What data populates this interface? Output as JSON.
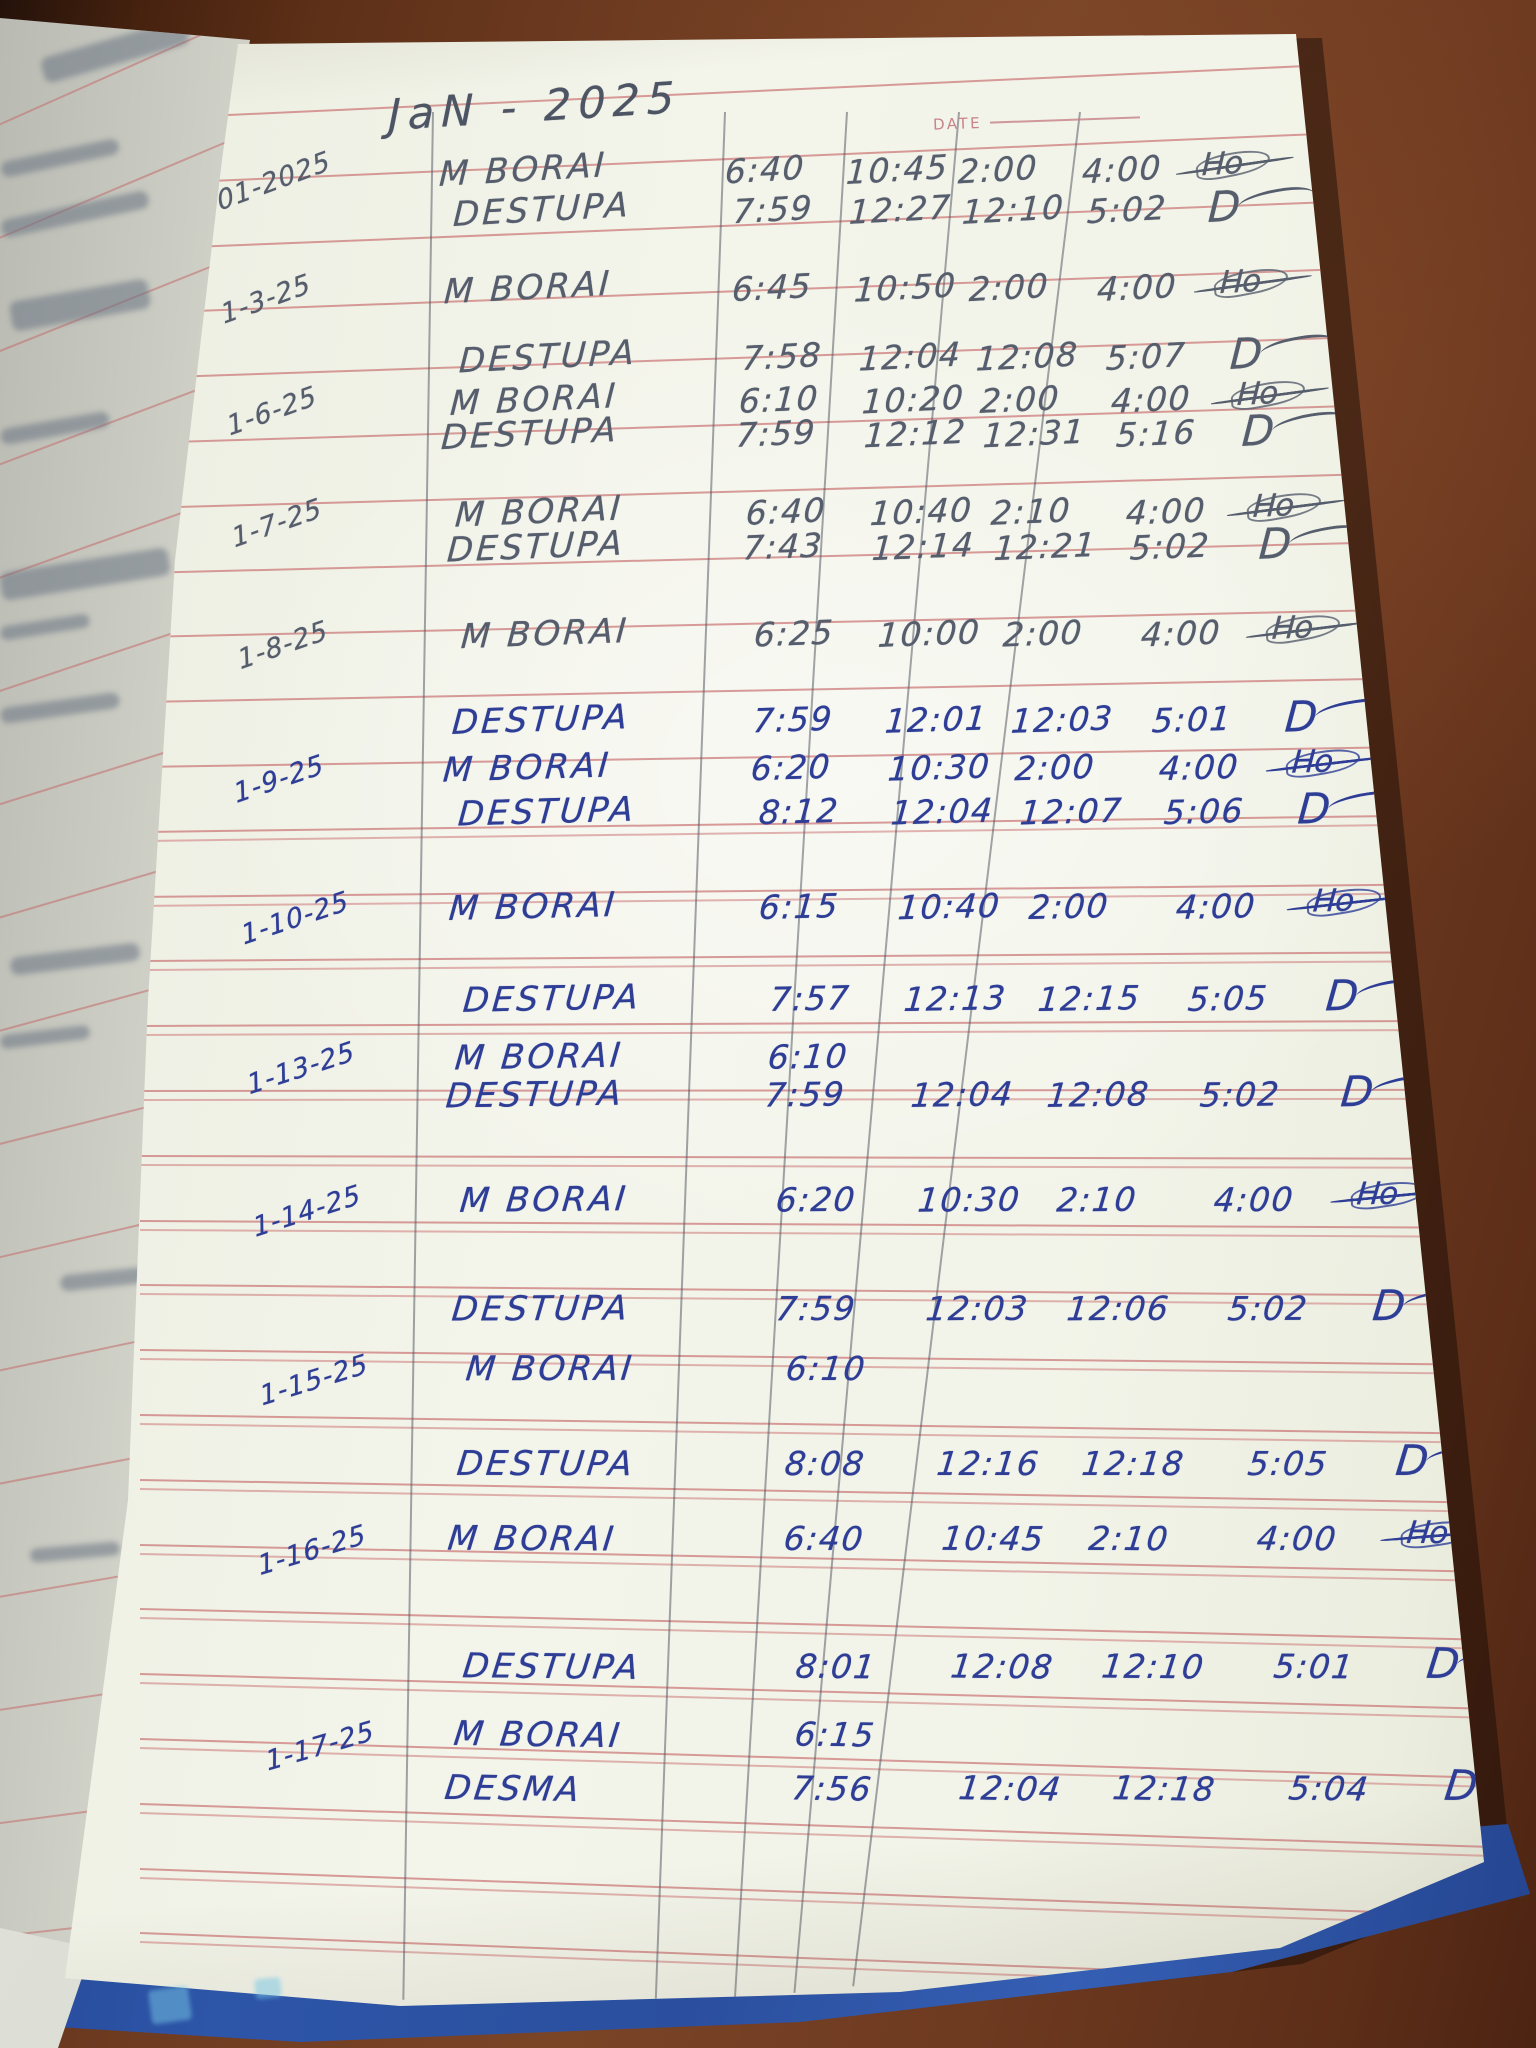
{
  "photo": {
    "title_handwritten": "JaN - 2025",
    "printed_date_label": "DATE",
    "marks": {
      "crossed_scribble": "Ho",
      "signature": "D"
    },
    "ink_colors": {
      "pencil": "#565e6d",
      "pen": "#2e3e96",
      "ruled_line_red": "#cb7676",
      "column_line_gray": "#4e5460",
      "cover_blue": "#2d55a8",
      "table_wood_brown": "#6f3c21"
    },
    "log_rows": [
      {
        "date": "01-2025",
        "name": "M BORAI",
        "t1": "6:40",
        "t2": "10:45",
        "t3": "2:00",
        "t4": "4:00",
        "mark": "scribble",
        "ink": "pencil"
      },
      {
        "date": "",
        "name": "DESTUPA",
        "t1": "7:59",
        "t2": "12:27",
        "t3": "12:10",
        "t4": "5:02",
        "mark": "signature",
        "ink": "pencil"
      },
      {
        "date": "1-3-25",
        "name": "M BORAI",
        "t1": "6:45",
        "t2": "10:50",
        "t3": "2:00",
        "t4": "4:00",
        "mark": "scribble",
        "ink": "pencil"
      },
      {
        "date": "",
        "name": "DESTUPA",
        "t1": "7:58",
        "t2": "12:04",
        "t3": "12:08",
        "t4": "5:07",
        "mark": "signature",
        "ink": "pencil"
      },
      {
        "date": "1-6-25",
        "name": "M BORAI",
        "t1": "6:10",
        "t2": "10:20",
        "t3": "2:00",
        "t4": "4:00",
        "mark": "scribble",
        "ink": "pencil"
      },
      {
        "date": "",
        "name": "DESTUPA",
        "t1": "7:59",
        "t2": "12:12",
        "t3": "12:31",
        "t4": "5:16",
        "mark": "signature",
        "ink": "pencil"
      },
      {
        "date": "1-7-25",
        "name": "M BORAI",
        "t1": "6:40",
        "t2": "10:40",
        "t3": "2:10",
        "t4": "4:00",
        "mark": "scribble",
        "ink": "pencil"
      },
      {
        "date": "",
        "name": "DESTUPA",
        "t1": "7:43",
        "t2": "12:14",
        "t3": "12:21",
        "t4": "5:02",
        "mark": "signature",
        "ink": "pencil"
      },
      {
        "date": "1-8-25",
        "name": "M BORAI",
        "t1": "6:25",
        "t2": "10:00",
        "t3": "2:00",
        "t4": "4:00",
        "mark": "scribble",
        "ink": "pencil"
      },
      {
        "date": "",
        "name": "DESTUPA",
        "t1": "7:59",
        "t2": "12:01",
        "t3": "12:03",
        "t4": "5:01",
        "mark": "signature",
        "ink": "pen"
      },
      {
        "date": "1-9-25",
        "name": "M BORAI",
        "t1": "6:20",
        "t2": "10:30",
        "t3": "2:00",
        "t4": "4:00",
        "mark": "scribble",
        "ink": "pen"
      },
      {
        "date": "",
        "name": "DESTUPA",
        "t1": "8:12",
        "t2": "12:04",
        "t3": "12:07",
        "t4": "5:06",
        "mark": "signature",
        "ink": "pen"
      },
      {
        "date": "1-10-25",
        "name": "M BORAI",
        "t1": "6:15",
        "t2": "10:40",
        "t3": "2:00",
        "t4": "4:00",
        "mark": "scribble",
        "ink": "pen"
      },
      {
        "date": "",
        "name": "DESTUPA",
        "t1": "7:57",
        "t2": "12:13",
        "t3": "12:15",
        "t4": "5:05",
        "mark": "signature",
        "ink": "pen"
      },
      {
        "date": "1-13-25",
        "name": "M BORAI",
        "t1": "6:10",
        "t2": "",
        "t3": "",
        "t4": "",
        "mark": "",
        "ink": "pen"
      },
      {
        "date": "",
        "name": "DESTUPA",
        "t1": "7:59",
        "t2": "12:04",
        "t3": "12:08",
        "t4": "5:02",
        "mark": "signature",
        "ink": "pen"
      },
      {
        "date": "1-14-25",
        "name": "M BORAI",
        "t1": "6:20",
        "t2": "10:30",
        "t3": "2:10",
        "t4": "4:00",
        "mark": "scribble",
        "ink": "pen"
      },
      {
        "date": "",
        "name": "DESTUPA",
        "t1": "7:59",
        "t2": "12:03",
        "t3": "12:06",
        "t4": "5:02",
        "mark": "signature",
        "ink": "pen"
      },
      {
        "date": "1-15-25",
        "name": "M BORAI",
        "t1": "6:10",
        "t2": "",
        "t3": "",
        "t4": "",
        "mark": "",
        "ink": "pen"
      },
      {
        "date": "",
        "name": "DESTUPA",
        "t1": "8:08",
        "t2": "12:16",
        "t3": "12:18",
        "t4": "5:05",
        "mark": "signature",
        "ink": "pen"
      },
      {
        "date": "1-16-25",
        "name": "M BORAI",
        "t1": "6:40",
        "t2": "10:45",
        "t3": "2:10",
        "t4": "4:00",
        "mark": "scribble",
        "ink": "pen"
      },
      {
        "date": "",
        "name": "DESTUPA",
        "t1": "8:01",
        "t2": "12:08",
        "t3": "12:10",
        "t4": "5:01",
        "mark": "signature",
        "ink": "pen"
      },
      {
        "date": "1-17-25",
        "name": "M BORAI",
        "t1": "6:15",
        "t2": "",
        "t3": "",
        "t4": "",
        "mark": "",
        "ink": "pen"
      },
      {
        "date": "",
        "name": "DESMA",
        "t1": "7:56",
        "t2": "12:04",
        "t3": "12:18",
        "t4": "5:04",
        "mark": "signature",
        "ink": "pen"
      }
    ]
  }
}
